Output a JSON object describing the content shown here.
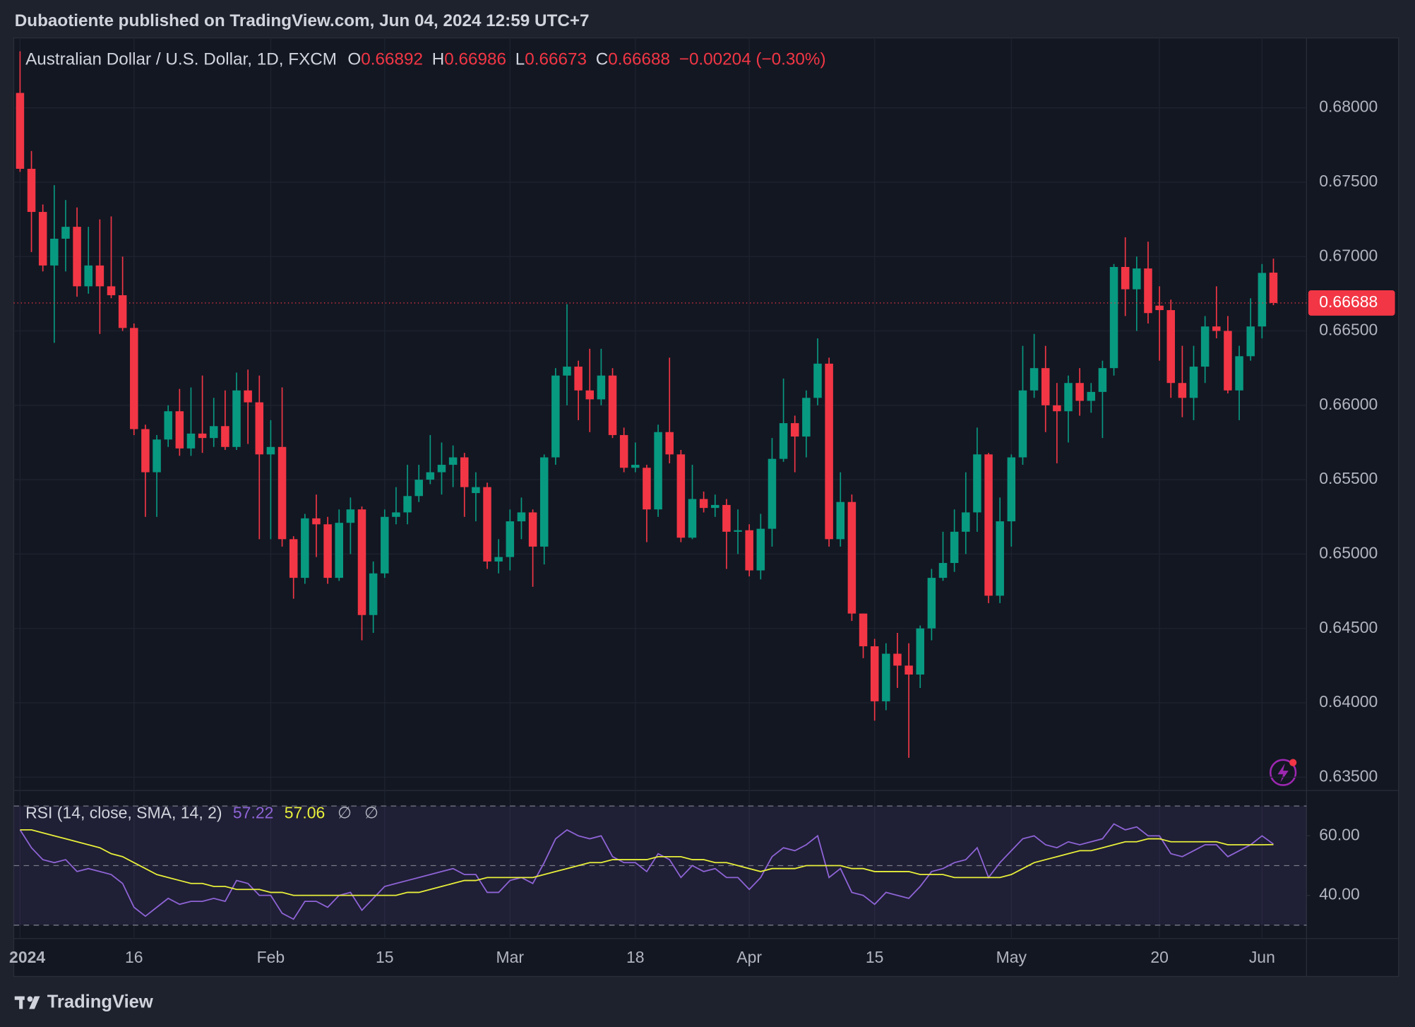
{
  "header": {
    "publisher": "Dubaotiente published on TradingView.com, Jun 04, 2024 12:59 UTC+7"
  },
  "footer": {
    "brand": "TradingView"
  },
  "chart_data": [
    {
      "type": "candlestick",
      "title": "Australian Dollar / U.S. Dollar, 1D, FXCM",
      "ohlc_labels": [
        "O",
        "H",
        "L",
        "C"
      ],
      "change": "−0.00204 (−0.30%)",
      "up_color": "#089981",
      "down_color": "#f23645",
      "ylim": [
        0.6341,
        0.6847
      ],
      "yticks": [
        {
          "value": 0.635,
          "label": "0.63500"
        },
        {
          "value": 0.64,
          "label": "0.64000"
        },
        {
          "value": 0.645,
          "label": "0.64500"
        },
        {
          "value": 0.65,
          "label": "0.65000"
        },
        {
          "value": 0.655,
          "label": "0.65500"
        },
        {
          "value": 0.66,
          "label": "0.66000"
        },
        {
          "value": 0.665,
          "label": "0.66500"
        },
        {
          "value": 0.67,
          "label": "0.67000"
        },
        {
          "value": 0.675,
          "label": "0.67500"
        },
        {
          "value": 0.68,
          "label": "0.68000"
        }
      ],
      "grid": true,
      "last_price_line": true,
      "categories": [
        "2024",
        null,
        null,
        null,
        null,
        null,
        null,
        null,
        null,
        null,
        "16",
        null,
        null,
        null,
        null,
        null,
        null,
        null,
        null,
        null,
        null,
        null,
        "Feb",
        null,
        null,
        null,
        null,
        null,
        null,
        null,
        null,
        null,
        "15",
        null,
        null,
        null,
        null,
        null,
        null,
        null,
        null,
        null,
        null,
        "Mar",
        null,
        null,
        null,
        null,
        null,
        null,
        null,
        null,
        null,
        null,
        "18",
        null,
        null,
        null,
        null,
        null,
        null,
        null,
        null,
        null,
        "Apr",
        null,
        null,
        null,
        null,
        null,
        null,
        null,
        null,
        null,
        null,
        "15",
        null,
        null,
        null,
        null,
        null,
        null,
        null,
        null,
        null,
        null,
        null,
        "May",
        null,
        null,
        null,
        null,
        null,
        null,
        null,
        null,
        null,
        null,
        null,
        null,
        "20",
        null,
        null,
        null,
        null,
        null,
        null,
        null,
        null,
        "Jun",
        null
      ],
      "open": [
        0.681,
        0.6759,
        0.673,
        0.6694,
        0.6712,
        0.672,
        0.668,
        0.6694,
        0.668,
        0.6674,
        0.6652,
        0.6584,
        0.6555,
        0.6577,
        0.6596,
        0.6571,
        0.6581,
        0.6578,
        0.6586,
        0.6572,
        0.661,
        0.6602,
        0.6567,
        0.6572,
        0.651,
        0.6484,
        0.6524,
        0.652,
        0.6484,
        0.6521,
        0.653,
        0.6459,
        0.6487,
        0.6525,
        0.6528,
        0.6539,
        0.655,
        0.6555,
        0.656,
        0.6565,
        0.6541,
        0.6545,
        0.6495,
        0.6498,
        0.6522,
        0.6528,
        0.6505,
        0.6565,
        0.662,
        0.6626,
        0.661,
        0.6604,
        0.662,
        0.658,
        0.6558,
        0.6558,
        0.653,
        0.6582,
        0.6567,
        0.6511,
        0.6537,
        0.6531,
        0.6533,
        0.6515,
        0.6516,
        0.6489,
        0.6517,
        0.6564,
        0.6588,
        0.6579,
        0.6605,
        0.6628,
        0.651,
        0.6535,
        0.646,
        0.6438,
        0.6401,
        0.6433,
        0.6425,
        0.6419,
        0.645,
        0.6484,
        0.6494,
        0.6515,
        0.6528,
        0.6567,
        0.6472,
        0.6522,
        0.6565,
        0.661,
        0.6625,
        0.66,
        0.6596,
        0.6615,
        0.6603,
        0.6609,
        0.6625,
        0.6693,
        0.6678,
        0.6692,
        0.6667,
        0.6664,
        0.6615,
        0.6605,
        0.6626,
        0.6653,
        0.665,
        0.661,
        0.6633,
        0.6653,
        0.66892
      ],
      "high": [
        0.6838,
        0.6771,
        0.6735,
        0.6748,
        0.6738,
        0.6733,
        0.672,
        0.6725,
        0.6727,
        0.67,
        0.6655,
        0.6587,
        0.658,
        0.66,
        0.6611,
        0.6612,
        0.662,
        0.6605,
        0.661,
        0.6622,
        0.6624,
        0.662,
        0.659,
        0.6612,
        0.6512,
        0.6527,
        0.654,
        0.6525,
        0.653,
        0.6538,
        0.6532,
        0.6495,
        0.653,
        0.6545,
        0.656,
        0.656,
        0.658,
        0.6575,
        0.6573,
        0.6568,
        0.6555,
        0.6548,
        0.651,
        0.653,
        0.6538,
        0.653,
        0.6567,
        0.6625,
        0.6668,
        0.663,
        0.6638,
        0.6638,
        0.6625,
        0.6585,
        0.6575,
        0.656,
        0.6587,
        0.6632,
        0.657,
        0.656,
        0.6542,
        0.654,
        0.6537,
        0.653,
        0.652,
        0.6527,
        0.6578,
        0.6618,
        0.6593,
        0.661,
        0.6645,
        0.6632,
        0.6555,
        0.654,
        0.646,
        0.6443,
        0.644,
        0.6447,
        0.644,
        0.6452,
        0.649,
        0.6515,
        0.653,
        0.6555,
        0.6585,
        0.6568,
        0.6538,
        0.6567,
        0.664,
        0.6648,
        0.664,
        0.6615,
        0.662,
        0.6625,
        0.6615,
        0.663,
        0.6695,
        0.6713,
        0.67,
        0.671,
        0.668,
        0.6671,
        0.664,
        0.664,
        0.666,
        0.668,
        0.666,
        0.664,
        0.6672,
        0.6695,
        0.66986
      ],
      "low": [
        0.6757,
        0.6703,
        0.669,
        0.6642,
        0.669,
        0.6673,
        0.6675,
        0.6648,
        0.6672,
        0.665,
        0.658,
        0.6525,
        0.6525,
        0.6572,
        0.6566,
        0.6566,
        0.6568,
        0.6572,
        0.657,
        0.657,
        0.6574,
        0.651,
        0.651,
        0.6505,
        0.647,
        0.648,
        0.6498,
        0.648,
        0.6482,
        0.65,
        0.6442,
        0.6447,
        0.6484,
        0.652,
        0.652,
        0.6535,
        0.6547,
        0.654,
        0.6545,
        0.6525,
        0.6522,
        0.649,
        0.6487,
        0.6489,
        0.651,
        0.6478,
        0.6493,
        0.656,
        0.66,
        0.659,
        0.6582,
        0.66,
        0.6578,
        0.6555,
        0.6555,
        0.6508,
        0.6525,
        0.6561,
        0.6508,
        0.651,
        0.6528,
        0.6525,
        0.649,
        0.65,
        0.6485,
        0.6483,
        0.6505,
        0.6562,
        0.6555,
        0.6565,
        0.66,
        0.6505,
        0.6505,
        0.6455,
        0.643,
        0.6388,
        0.6395,
        0.641,
        0.6363,
        0.641,
        0.6442,
        0.6482,
        0.6488,
        0.65,
        0.6515,
        0.6467,
        0.6467,
        0.6505,
        0.656,
        0.6605,
        0.6582,
        0.6561,
        0.6575,
        0.6593,
        0.6595,
        0.6578,
        0.662,
        0.666,
        0.665,
        0.6655,
        0.663,
        0.6605,
        0.6592,
        0.659,
        0.6615,
        0.6645,
        0.6608,
        0.659,
        0.663,
        0.6645,
        0.66673
      ],
      "close": [
        0.6759,
        0.673,
        0.6694,
        0.6712,
        0.672,
        0.668,
        0.6694,
        0.668,
        0.6674,
        0.6652,
        0.6584,
        0.6555,
        0.6577,
        0.6596,
        0.6571,
        0.6581,
        0.6578,
        0.6586,
        0.6572,
        0.661,
        0.6602,
        0.6567,
        0.6572,
        0.651,
        0.6484,
        0.6524,
        0.652,
        0.6484,
        0.6521,
        0.653,
        0.6459,
        0.6487,
        0.6525,
        0.6528,
        0.6539,
        0.655,
        0.6555,
        0.656,
        0.6565,
        0.6545,
        0.6545,
        0.6495,
        0.6498,
        0.6522,
        0.6528,
        0.6505,
        0.6565,
        0.662,
        0.6626,
        0.661,
        0.6604,
        0.662,
        0.658,
        0.6558,
        0.656,
        0.653,
        0.6582,
        0.6567,
        0.6511,
        0.6537,
        0.6531,
        0.6533,
        0.6515,
        0.6516,
        0.6489,
        0.6517,
        0.6564,
        0.6588,
        0.6579,
        0.6605,
        0.6628,
        0.651,
        0.6535,
        0.646,
        0.6438,
        0.6401,
        0.6433,
        0.6425,
        0.6419,
        0.645,
        0.6484,
        0.6494,
        0.6515,
        0.6528,
        0.6567,
        0.6472,
        0.6522,
        0.6565,
        0.661,
        0.6625,
        0.66,
        0.6596,
        0.6615,
        0.6603,
        0.6609,
        0.6625,
        0.6693,
        0.6678,
        0.6692,
        0.6662,
        0.6664,
        0.6615,
        0.6605,
        0.6626,
        0.6653,
        0.665,
        0.661,
        0.6633,
        0.6653,
        0.6689,
        0.66688
      ]
    },
    {
      "type": "line",
      "title": "RSI (14, close, SMA, 14, 2)",
      "flags": [
        "∅",
        "∅"
      ],
      "ylim": [
        25.5,
        75.2
      ],
      "yticks": [
        {
          "value": 40,
          "label": "40.00"
        },
        {
          "value": 60,
          "label": "60.00"
        }
      ],
      "levels": [
        70,
        50,
        30
      ],
      "band_color": "#7e57c2",
      "series": [
        {
          "color": "#8e64d6",
          "values": [
            62,
            56,
            52,
            51,
            52,
            48,
            49,
            48,
            47,
            44,
            36,
            33,
            36,
            39,
            37,
            38,
            38,
            39,
            38,
            45,
            44,
            40,
            40,
            34,
            32,
            38,
            38,
            36,
            40,
            41,
            35,
            39,
            43,
            44,
            45,
            46,
            47,
            48,
            49,
            47,
            47,
            41,
            41,
            45,
            46,
            44,
            51,
            59,
            62,
            60,
            59,
            60,
            53,
            51,
            51,
            48,
            54,
            52,
            46,
            50,
            48,
            49,
            46,
            46,
            42,
            46,
            53,
            56,
            55,
            57,
            60,
            46,
            49,
            41,
            40,
            37,
            41,
            40,
            39,
            43,
            48,
            49,
            51,
            52,
            56,
            46,
            51,
            55,
            59,
            60,
            57,
            56,
            58,
            57,
            58,
            59,
            64,
            62,
            63,
            60,
            60,
            54,
            53,
            55,
            57,
            57,
            53,
            55,
            57,
            60,
            57.22
          ]
        },
        {
          "color": "#e8ef3a",
          "values": [
            62,
            62,
            61,
            60,
            59,
            58,
            57,
            56,
            54,
            53,
            51,
            49,
            47,
            46,
            45,
            44,
            44,
            43,
            43,
            42,
            42,
            42,
            41,
            41,
            40,
            40,
            40,
            40,
            40,
            40,
            40,
            40,
            40,
            40,
            41,
            41,
            42,
            43,
            44,
            45,
            45,
            46,
            46,
            46,
            46,
            46,
            47,
            48,
            49,
            50,
            51,
            51,
            52,
            52,
            52,
            52,
            53,
            53,
            53,
            52,
            52,
            51,
            51,
            50,
            49,
            48,
            49,
            49,
            49,
            50,
            50,
            50,
            50,
            49,
            49,
            48,
            48,
            48,
            48,
            47,
            47,
            47,
            46,
            46,
            46,
            46,
            46,
            47,
            49,
            51,
            52,
            53,
            54,
            55,
            55,
            56,
            57,
            58,
            58,
            59,
            59,
            58,
            58,
            58,
            58,
            58,
            57,
            57,
            57,
            57,
            57.06
          ]
        }
      ]
    }
  ]
}
